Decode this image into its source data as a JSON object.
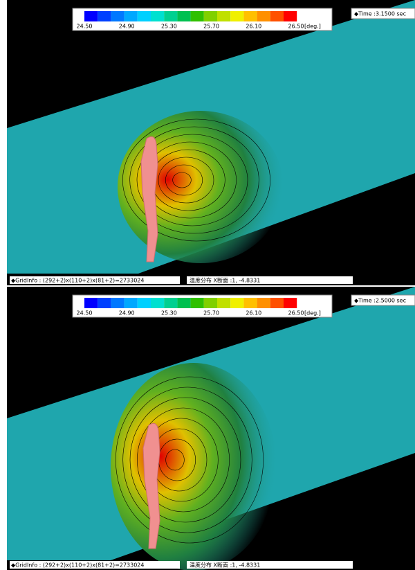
{
  "panels": [
    {
      "colorbar": {
        "ticks": [
          "24.50",
          "24.90",
          "25.30",
          "25.70",
          "26.10",
          "26.50"
        ],
        "unit": "[deg.]"
      },
      "time": "◆Time :3.1500  sec",
      "grid_info": "◆GridInfo : (292+2)x(110+2)x(81+2)=2733024",
      "section": "温度分布 X断面 :1,  -4.8331"
    },
    {
      "colorbar": {
        "ticks": [
          "24.50",
          "24.90",
          "25.30",
          "25.70",
          "26.10",
          "26.50"
        ],
        "unit": "[deg.]"
      },
      "time": "◆Time :2.5000  sec",
      "grid_info": "◆GridInfo : (292+2)x(110+2)x(81+2)=2733024",
      "section": "温度分布 X断面 :1,  -4.8331"
    }
  ]
}
